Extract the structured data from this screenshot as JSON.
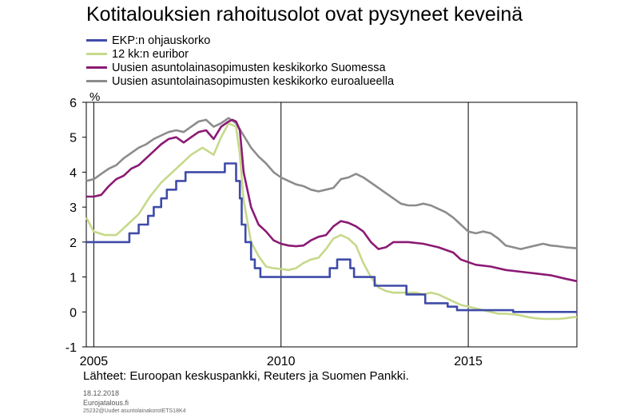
{
  "title": "Kotitalouksien rahoitusolot ovat pysyneet keveinä",
  "source": "Lähteet: Euroopan keskuspankki, Reuters ja Suomen Pankki.",
  "footer": {
    "date": "18.12.2018",
    "site": "Eurojatalous.fi",
    "code": "25232@Uudet asuntolainakorotETS18K4"
  },
  "chart_data": {
    "type": "line",
    "title": "Kotitalouksien rahoitusolot ovat pysyneet keveinä",
    "ylabel": "%",
    "xlabel": "",
    "xlim": [
      2004.8,
      2017.9
    ],
    "ylim": [
      -1,
      6
    ],
    "yticks": [
      -1,
      0,
      1,
      2,
      3,
      4,
      5,
      6
    ],
    "xticks": [
      2005,
      2010,
      2015
    ],
    "grid": "vertical at 2010 and 2015",
    "legend": "top-left",
    "series": [
      {
        "name": "EKP:n ohjauskorko",
        "color": "#3f4ba8",
        "step": true,
        "points": [
          [
            2004.8,
            2.0
          ],
          [
            2005.0,
            2.0
          ],
          [
            2005.95,
            2.25
          ],
          [
            2006.2,
            2.5
          ],
          [
            2006.45,
            2.75
          ],
          [
            2006.6,
            3.0
          ],
          [
            2006.8,
            3.25
          ],
          [
            2006.95,
            3.5
          ],
          [
            2007.2,
            3.75
          ],
          [
            2007.45,
            4.0
          ],
          [
            2008.5,
            4.25
          ],
          [
            2008.8,
            3.75
          ],
          [
            2008.9,
            3.25
          ],
          [
            2008.95,
            2.5
          ],
          [
            2009.05,
            2.0
          ],
          [
            2009.2,
            1.5
          ],
          [
            2009.3,
            1.25
          ],
          [
            2009.45,
            1.0
          ],
          [
            2011.3,
            1.25
          ],
          [
            2011.5,
            1.5
          ],
          [
            2011.85,
            1.25
          ],
          [
            2011.95,
            1.0
          ],
          [
            2012.5,
            0.75
          ],
          [
            2013.35,
            0.5
          ],
          [
            2013.85,
            0.25
          ],
          [
            2014.45,
            0.15
          ],
          [
            2014.7,
            0.05
          ],
          [
            2016.2,
            0.0
          ],
          [
            2017.9,
            0.0
          ]
        ]
      },
      {
        "name": "12 kk:n euribor",
        "color": "#c6d98a",
        "points": [
          [
            2004.8,
            2.7
          ],
          [
            2005.0,
            2.3
          ],
          [
            2005.3,
            2.2
          ],
          [
            2005.6,
            2.2
          ],
          [
            2005.9,
            2.5
          ],
          [
            2006.2,
            2.8
          ],
          [
            2006.5,
            3.3
          ],
          [
            2006.8,
            3.7
          ],
          [
            2007.1,
            4.0
          ],
          [
            2007.4,
            4.3
          ],
          [
            2007.6,
            4.5
          ],
          [
            2007.9,
            4.7
          ],
          [
            2008.2,
            4.5
          ],
          [
            2008.4,
            5.0
          ],
          [
            2008.6,
            5.4
          ],
          [
            2008.8,
            5.3
          ],
          [
            2008.9,
            4.5
          ],
          [
            2009.0,
            3.2
          ],
          [
            2009.2,
            2.0
          ],
          [
            2009.4,
            1.6
          ],
          [
            2009.6,
            1.3
          ],
          [
            2009.8,
            1.25
          ],
          [
            2010.0,
            1.23
          ],
          [
            2010.2,
            1.2
          ],
          [
            2010.4,
            1.25
          ],
          [
            2010.6,
            1.4
          ],
          [
            2010.8,
            1.5
          ],
          [
            2011.0,
            1.55
          ],
          [
            2011.2,
            1.8
          ],
          [
            2011.4,
            2.1
          ],
          [
            2011.6,
            2.2
          ],
          [
            2011.8,
            2.1
          ],
          [
            2012.0,
            1.9
          ],
          [
            2012.2,
            1.4
          ],
          [
            2012.4,
            1.0
          ],
          [
            2012.6,
            0.7
          ],
          [
            2012.8,
            0.6
          ],
          [
            2013.0,
            0.55
          ],
          [
            2013.2,
            0.55
          ],
          [
            2013.4,
            0.55
          ],
          [
            2013.6,
            0.55
          ],
          [
            2013.8,
            0.5
          ],
          [
            2014.0,
            0.55
          ],
          [
            2014.2,
            0.5
          ],
          [
            2014.4,
            0.4
          ],
          [
            2014.6,
            0.3
          ],
          [
            2014.8,
            0.2
          ],
          [
            2015.0,
            0.15
          ],
          [
            2015.2,
            0.1
          ],
          [
            2015.4,
            0.05
          ],
          [
            2015.6,
            0.0
          ],
          [
            2015.8,
            -0.05
          ],
          [
            2016.0,
            -0.05
          ],
          [
            2016.2,
            -0.07
          ],
          [
            2016.4,
            -0.1
          ],
          [
            2016.6,
            -0.15
          ],
          [
            2016.8,
            -0.18
          ],
          [
            2017.0,
            -0.2
          ],
          [
            2017.2,
            -0.2
          ],
          [
            2017.4,
            -0.2
          ],
          [
            2017.6,
            -0.18
          ],
          [
            2017.8,
            -0.15
          ],
          [
            2017.9,
            -0.15
          ]
        ]
      },
      {
        "name": "Uusien asuntolainasopimusten keskikorko Suomessa",
        "color": "#8b1a74",
        "points": [
          [
            2004.8,
            3.3
          ],
          [
            2005.0,
            3.3
          ],
          [
            2005.2,
            3.35
          ],
          [
            2005.4,
            3.6
          ],
          [
            2005.6,
            3.8
          ],
          [
            2005.8,
            3.9
          ],
          [
            2006.0,
            4.1
          ],
          [
            2006.2,
            4.2
          ],
          [
            2006.4,
            4.4
          ],
          [
            2006.6,
            4.6
          ],
          [
            2006.8,
            4.8
          ],
          [
            2007.0,
            4.95
          ],
          [
            2007.2,
            5.0
          ],
          [
            2007.4,
            4.85
          ],
          [
            2007.6,
            5.0
          ],
          [
            2007.8,
            5.15
          ],
          [
            2008.0,
            5.2
          ],
          [
            2008.2,
            4.95
          ],
          [
            2008.4,
            5.3
          ],
          [
            2008.6,
            5.45
          ],
          [
            2008.7,
            5.5
          ],
          [
            2008.8,
            5.45
          ],
          [
            2008.9,
            5.2
          ],
          [
            2009.0,
            4.0
          ],
          [
            2009.2,
            3.0
          ],
          [
            2009.4,
            2.5
          ],
          [
            2009.6,
            2.3
          ],
          [
            2009.8,
            2.05
          ],
          [
            2010.0,
            1.95
          ],
          [
            2010.2,
            1.9
          ],
          [
            2010.4,
            1.88
          ],
          [
            2010.6,
            1.9
          ],
          [
            2010.8,
            2.05
          ],
          [
            2011.0,
            2.15
          ],
          [
            2011.2,
            2.2
          ],
          [
            2011.4,
            2.45
          ],
          [
            2011.6,
            2.6
          ],
          [
            2011.8,
            2.55
          ],
          [
            2012.0,
            2.45
          ],
          [
            2012.2,
            2.3
          ],
          [
            2012.4,
            2.0
          ],
          [
            2012.6,
            1.8
          ],
          [
            2012.8,
            1.85
          ],
          [
            2013.0,
            2.0
          ],
          [
            2013.4,
            2.0
          ],
          [
            2013.8,
            1.95
          ],
          [
            2014.2,
            1.85
          ],
          [
            2014.6,
            1.7
          ],
          [
            2014.8,
            1.5
          ],
          [
            2015.2,
            1.35
          ],
          [
            2015.6,
            1.3
          ],
          [
            2016.0,
            1.2
          ],
          [
            2016.4,
            1.15
          ],
          [
            2016.8,
            1.1
          ],
          [
            2017.2,
            1.05
          ],
          [
            2017.6,
            0.95
          ],
          [
            2017.9,
            0.88
          ]
        ]
      },
      {
        "name": "Uusien asuntolainasopimusten keskikorko euroalueella",
        "color": "#8c8c8c",
        "points": [
          [
            2004.8,
            3.75
          ],
          [
            2005.0,
            3.8
          ],
          [
            2005.2,
            3.95
          ],
          [
            2005.4,
            4.1
          ],
          [
            2005.6,
            4.2
          ],
          [
            2005.8,
            4.4
          ],
          [
            2006.0,
            4.55
          ],
          [
            2006.2,
            4.7
          ],
          [
            2006.4,
            4.8
          ],
          [
            2006.6,
            4.95
          ],
          [
            2006.8,
            5.05
          ],
          [
            2007.0,
            5.15
          ],
          [
            2007.2,
            5.2
          ],
          [
            2007.4,
            5.15
          ],
          [
            2007.6,
            5.3
          ],
          [
            2007.8,
            5.45
          ],
          [
            2008.0,
            5.5
          ],
          [
            2008.2,
            5.3
          ],
          [
            2008.4,
            5.4
          ],
          [
            2008.6,
            5.55
          ],
          [
            2008.8,
            5.4
          ],
          [
            2009.0,
            5.05
          ],
          [
            2009.2,
            4.7
          ],
          [
            2009.4,
            4.45
          ],
          [
            2009.6,
            4.25
          ],
          [
            2009.8,
            4.0
          ],
          [
            2010.0,
            3.85
          ],
          [
            2010.2,
            3.75
          ],
          [
            2010.4,
            3.65
          ],
          [
            2010.6,
            3.6
          ],
          [
            2010.8,
            3.5
          ],
          [
            2011.0,
            3.45
          ],
          [
            2011.2,
            3.5
          ],
          [
            2011.4,
            3.55
          ],
          [
            2011.6,
            3.8
          ],
          [
            2011.8,
            3.85
          ],
          [
            2012.0,
            3.95
          ],
          [
            2012.2,
            3.85
          ],
          [
            2012.4,
            3.7
          ],
          [
            2012.6,
            3.55
          ],
          [
            2012.8,
            3.4
          ],
          [
            2013.0,
            3.25
          ],
          [
            2013.2,
            3.1
          ],
          [
            2013.4,
            3.05
          ],
          [
            2013.6,
            3.05
          ],
          [
            2013.8,
            3.1
          ],
          [
            2014.0,
            3.05
          ],
          [
            2014.2,
            2.95
          ],
          [
            2014.4,
            2.85
          ],
          [
            2014.6,
            2.7
          ],
          [
            2014.8,
            2.5
          ],
          [
            2015.0,
            2.3
          ],
          [
            2015.2,
            2.25
          ],
          [
            2015.4,
            2.3
          ],
          [
            2015.6,
            2.25
          ],
          [
            2015.8,
            2.1
          ],
          [
            2016.0,
            1.9
          ],
          [
            2016.2,
            1.85
          ],
          [
            2016.4,
            1.8
          ],
          [
            2016.6,
            1.85
          ],
          [
            2016.8,
            1.9
          ],
          [
            2017.0,
            1.95
          ],
          [
            2017.2,
            1.9
          ],
          [
            2017.4,
            1.88
          ],
          [
            2017.6,
            1.85
          ],
          [
            2017.9,
            1.82
          ]
        ]
      }
    ]
  }
}
